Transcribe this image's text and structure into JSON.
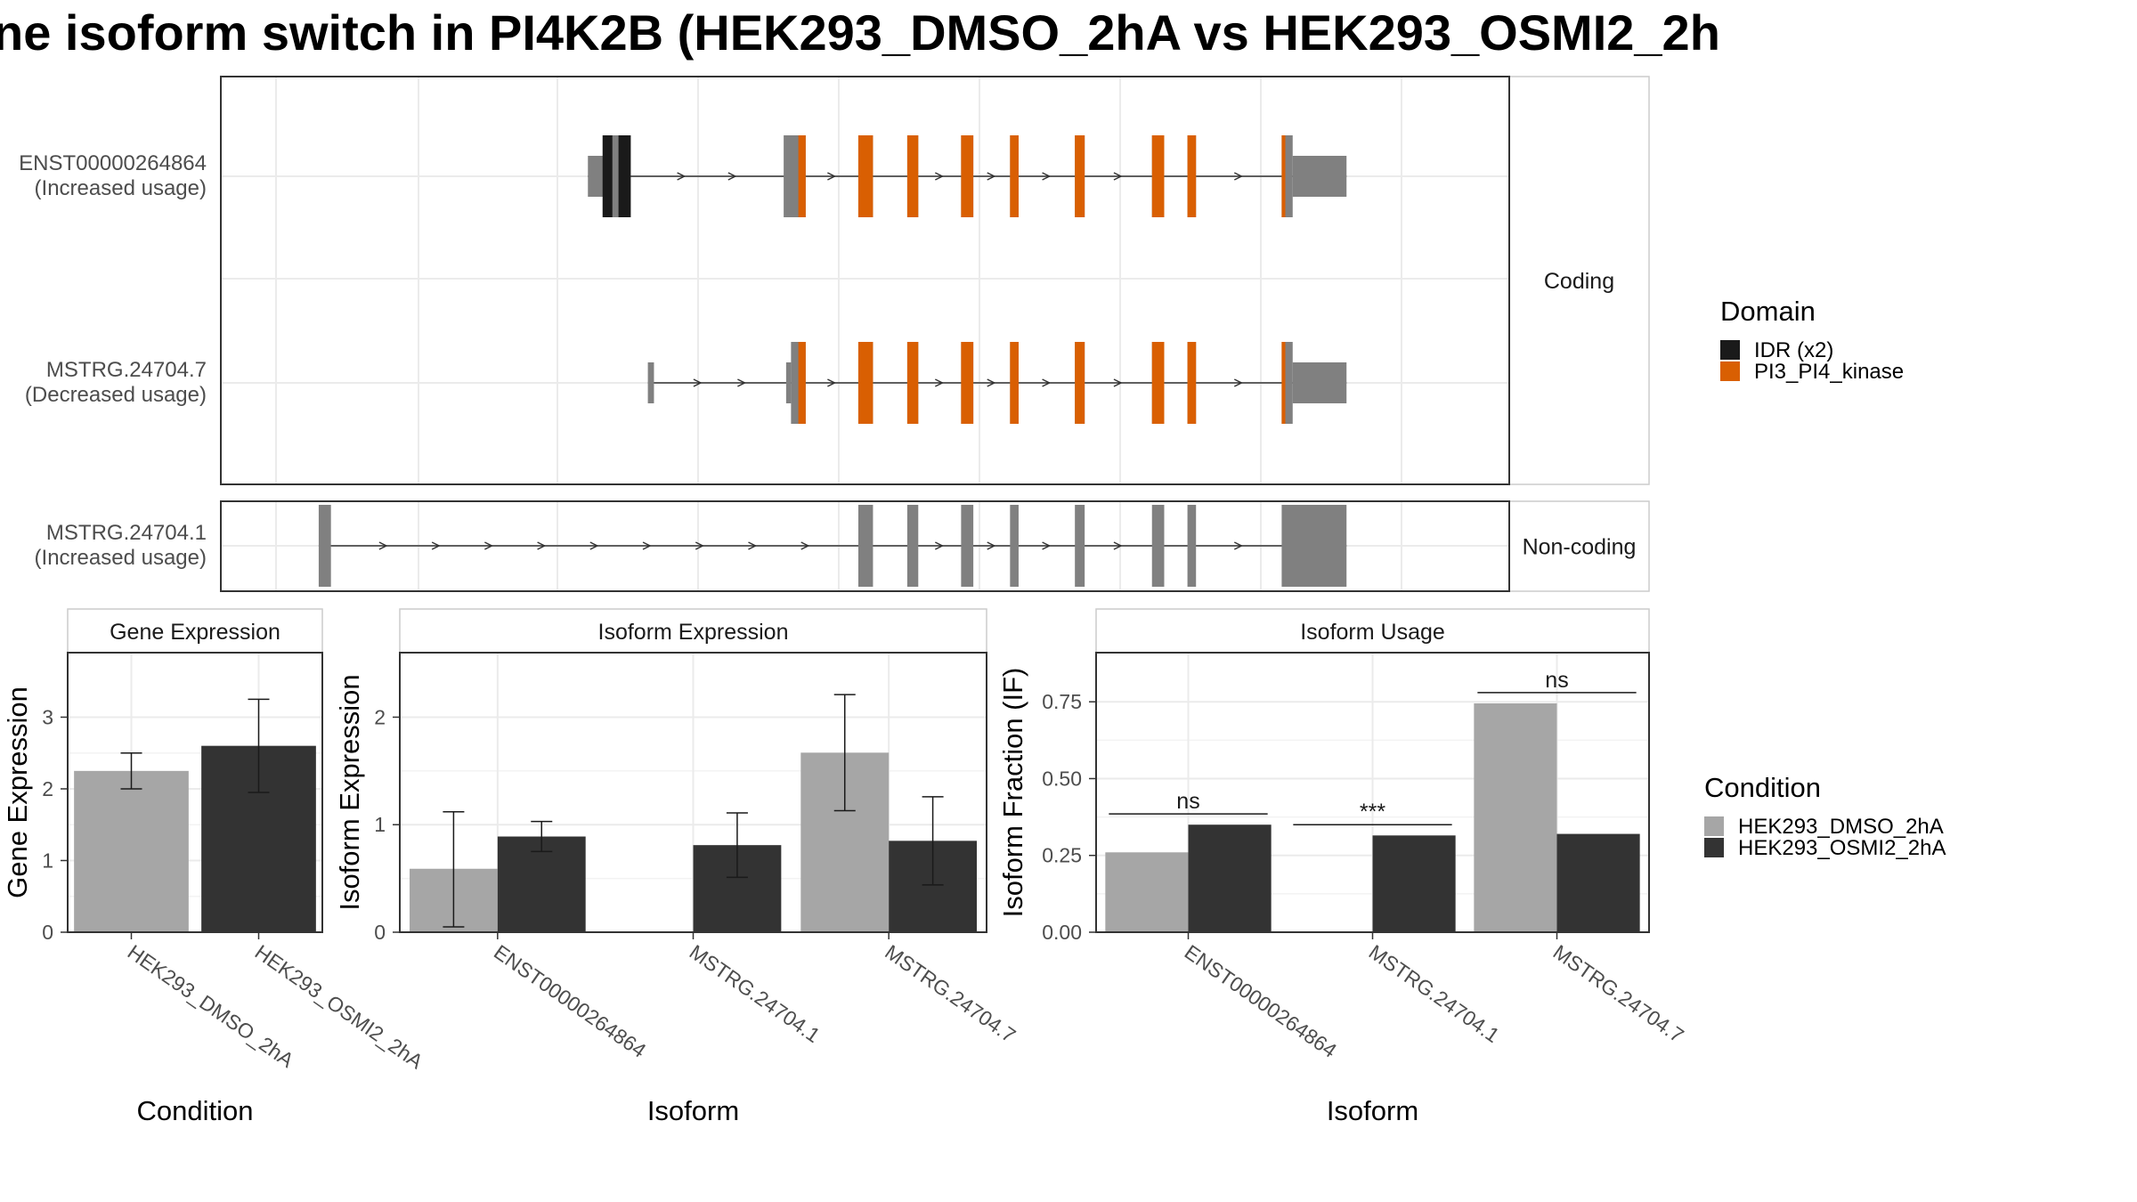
{
  "title": "ne isoform switch in PI4K2B (HEK293_DMSO_2hA vs HEK293_OSMI2_2h",
  "chart_data": [
    {
      "type": "gene-structure",
      "panels": [
        {
          "label": "Coding",
          "transcripts": [
            {
              "id": "ENST00000264864",
              "note": "(Increased usage)",
              "coding": true,
              "utr5": [
                [
                  420,
                  445
                ]
              ],
              "cds": [
                [
                  437,
                  455
                ],
                [
                  580,
                  598
                ],
                [
                  641,
                  653
                ],
                [
                  681,
                  690
                ],
                [
                  725,
                  735
                ],
                [
                  765,
                  772
                ],
                [
                  818,
                  826
                ],
                [
                  881,
                  891
                ],
                [
                  910,
                  917
                ],
                [
                  987,
                  996
                ]
              ],
              "utr3": [
                [
                  996,
                  1040
                ]
              ],
              "domains": [
                {
                  "name": "IDR (x2)",
                  "segments": [
                    [
                      432,
                      440
                    ],
                    [
                      445,
                      455
                    ]
                  ]
                },
                {
                  "name": "PI3_PI4_kinase",
                  "segments": [
                    [
                      592,
                      598
                    ],
                    [
                      641,
                      653
                    ],
                    [
                      681,
                      690
                    ],
                    [
                      725,
                      735
                    ],
                    [
                      765,
                      772
                    ],
                    [
                      818,
                      826
                    ],
                    [
                      881,
                      891
                    ],
                    [
                      910,
                      917
                    ],
                    [
                      987,
                      990
                    ]
                  ]
                }
              ]
            },
            {
              "id": "MSTRG.24704.7",
              "note": "(Decreased usage)",
              "coding": true,
              "utr5": [
                [
                  469,
                  474
                ],
                [
                  582,
                  586
                ]
              ],
              "cds": [
                [
                  586,
                  598
                ],
                [
                  641,
                  653
                ],
                [
                  681,
                  690
                ],
                [
                  725,
                  735
                ],
                [
                  765,
                  772
                ],
                [
                  818,
                  826
                ],
                [
                  881,
                  891
                ],
                [
                  910,
                  917
                ],
                [
                  987,
                  996
                ]
              ],
              "utr3": [
                [
                  996,
                  1040
                ]
              ],
              "domains": [
                {
                  "name": "PI3_PI4_kinase",
                  "segments": [
                    [
                      592,
                      598
                    ],
                    [
                      641,
                      653
                    ],
                    [
                      681,
                      690
                    ],
                    [
                      725,
                      735
                    ],
                    [
                      765,
                      772
                    ],
                    [
                      818,
                      826
                    ],
                    [
                      881,
                      891
                    ],
                    [
                      910,
                      917
                    ],
                    [
                      987,
                      990
                    ]
                  ]
                }
              ]
            }
          ]
        },
        {
          "label": "Non-coding",
          "transcripts": [
            {
              "id": "MSTRG.24704.1",
              "note": "(Increased usage)",
              "coding": false,
              "exons": [
                [
                  200,
                  210
                ],
                [
                  641,
                  653
                ],
                [
                  681,
                  690
                ],
                [
                  725,
                  735
                ],
                [
                  765,
                  772
                ],
                [
                  818,
                  826
                ],
                [
                  881,
                  891
                ],
                [
                  910,
                  917
                ],
                [
                  987,
                  1040
                ]
              ]
            }
          ]
        }
      ],
      "legend": {
        "title": "Domain",
        "position": "right",
        "items": [
          {
            "name": "IDR (x2)",
            "color": "#1a1a1a"
          },
          {
            "name": "PI3_PI4_kinase",
            "color": "#d95f02"
          }
        ]
      }
    },
    {
      "type": "bar",
      "strip": "Gene Expression",
      "xlabel": "Condition",
      "ylabel": "Gene Expression",
      "ylim": [
        0,
        3.9
      ],
      "yticks": [
        0,
        1,
        2,
        3
      ],
      "categories": [
        "HEK293_DMSO_2hA",
        "HEK293_OSMI2_2hA"
      ],
      "bars": [
        {
          "value": 2.25,
          "err": [
            2.0,
            2.5
          ],
          "color": "#a6a6a6"
        },
        {
          "value": 2.6,
          "err": [
            1.95,
            3.25
          ],
          "color": "#333333"
        }
      ]
    },
    {
      "type": "bar",
      "strip": "Isoform Expression",
      "xlabel": "Isoform",
      "ylabel": "Isoform Expression",
      "ylim": [
        0,
        2.6
      ],
      "yticks": [
        0,
        1,
        2
      ],
      "categories": [
        "ENST00000264864",
        "MSTRG.24704.1",
        "MSTRG.24704.7"
      ],
      "series": [
        {
          "name": "HEK293_DMSO_2hA",
          "color": "#a6a6a6",
          "values": [
            0.59,
            0.0,
            1.67
          ],
          "err": [
            [
              0.05,
              1.12
            ],
            [
              0.0,
              0.0
            ],
            [
              1.13,
              2.21
            ]
          ]
        },
        {
          "name": "HEK293_OSMI2_2hA",
          "color": "#333333",
          "values": [
            0.89,
            0.81,
            0.85
          ],
          "err": [
            [
              0.75,
              1.03
            ],
            [
              0.51,
              1.11
            ],
            [
              0.44,
              1.26
            ]
          ]
        }
      ]
    },
    {
      "type": "bar",
      "strip": "Isoform Usage",
      "xlabel": "Isoform",
      "ylabel": "Isoform Fraction (IF)",
      "ylim": [
        0,
        0.91
      ],
      "yticks": [
        "0.00",
        "0.25",
        "0.50",
        "0.75"
      ],
      "categories": [
        "ENST00000264864",
        "MSTRG.24704.1",
        "MSTRG.24704.7"
      ],
      "series": [
        {
          "name": "HEK293_DMSO_2hA",
          "color": "#a6a6a6",
          "values": [
            0.26,
            0.0,
            0.745
          ]
        },
        {
          "name": "HEK293_OSMI2_2hA",
          "color": "#333333",
          "values": [
            0.35,
            0.315,
            0.32
          ]
        }
      ],
      "significance": [
        {
          "category": "ENST00000264864",
          "label": "ns",
          "y": 0.385
        },
        {
          "category": "MSTRG.24704.1",
          "label": "***",
          "y": 0.35
        },
        {
          "category": "MSTRG.24704.7",
          "label": "ns",
          "y": 0.78
        }
      ],
      "legend": {
        "title": "Condition",
        "position": "right",
        "items": [
          {
            "name": "HEK293_DMSO_2hA",
            "color": "#a6a6a6"
          },
          {
            "name": "HEK293_OSMI2_2hA",
            "color": "#333333"
          }
        ]
      }
    }
  ]
}
